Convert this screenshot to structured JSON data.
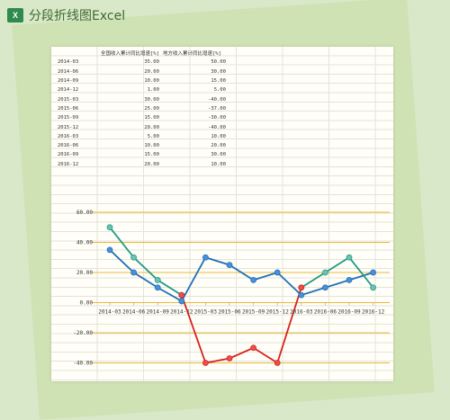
{
  "window": {
    "title": "分段折线图Excel",
    "icon": "excel-icon"
  },
  "table": {
    "headers": [
      "",
      "全国收入累计同比增速[%]",
      "地方收入累计同比增速[%]"
    ],
    "rows": [
      [
        "2014-03",
        "35.00",
        "50.00"
      ],
      [
        "2014-06",
        "20.00",
        "30.00"
      ],
      [
        "2014-09",
        "10.00",
        "15.00"
      ],
      [
        "2014-12",
        "1.00",
        "5.00"
      ],
      [
        "2015-03",
        "30.00",
        "-40.00"
      ],
      [
        "2015-06",
        "25.00",
        "-37.00"
      ],
      [
        "2015-09",
        "15.00",
        "-30.00"
      ],
      [
        "2015-12",
        "20.00",
        "-40.00"
      ],
      [
        "2016-03",
        "5.00",
        "10.00"
      ],
      [
        "2016-06",
        "10.00",
        "20.00"
      ],
      [
        "2016-09",
        "15.00",
        "30.00"
      ],
      [
        "2016-12",
        "20.00",
        "10.00"
      ]
    ]
  },
  "chart_data": {
    "type": "line",
    "title": "",
    "xlabel": "",
    "ylabel": "",
    "categories": [
      "2014-03",
      "2014-06",
      "2014-09",
      "2014-12",
      "2015-03",
      "2015-06",
      "2015-09",
      "2015-12",
      "2016-03",
      "2016-06",
      "2016-09",
      "2016-12"
    ],
    "y_ticks": [
      "60.00",
      "40.00",
      "20.00",
      "0.00",
      "-20.00",
      "-40.00"
    ],
    "ylim": [
      -45,
      65
    ],
    "grid": true,
    "series": [
      {
        "name": "",
        "color": "#1f6fb8",
        "values": [
          35,
          20,
          10,
          1,
          30,
          25,
          15,
          20,
          5,
          10,
          15,
          20
        ]
      },
      {
        "name": "",
        "color": "#1e9a84",
        "values": [
          50,
          30,
          15,
          5,
          null,
          null,
          null,
          null,
          10,
          20,
          30,
          10
        ]
      },
      {
        "name": "",
        "color": "#d8211c",
        "values": [
          null,
          null,
          null,
          5,
          -40,
          -37,
          -30,
          -40,
          10,
          null,
          null,
          null
        ]
      }
    ],
    "colors": {
      "grid": "#e8b93a",
      "axis_text": "#333333",
      "marker_fill_blue": "#4a90d8",
      "marker_fill_teal": "#6cc3b0",
      "marker_fill_red": "#e8504a"
    }
  }
}
